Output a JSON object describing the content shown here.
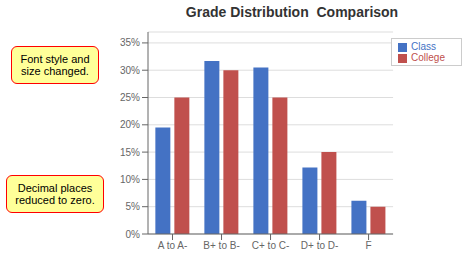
{
  "chart_data": {
    "type": "bar",
    "title": "Grade Distribution  Comparison",
    "categories": [
      "A to A-",
      "B+ to B-",
      "C+ to C-",
      "D+ to D-",
      "F"
    ],
    "series": [
      {
        "name": "Class",
        "color": "#4472C4",
        "values": [
          19.5,
          31.7,
          30.5,
          12.2,
          6.1
        ]
      },
      {
        "name": "College",
        "color": "#C0504D",
        "values": [
          25.0,
          30.0,
          25.0,
          15.0,
          5.0
        ]
      }
    ],
    "ylim": [
      0,
      37
    ],
    "yticks": [
      {
        "value": 0,
        "label": "0%"
      },
      {
        "value": 5,
        "label": "5%"
      },
      {
        "value": 10,
        "label": "10%"
      },
      {
        "value": 15,
        "label": "15%"
      },
      {
        "value": 20,
        "label": "20%"
      },
      {
        "value": 25,
        "label": "25%"
      },
      {
        "value": 30,
        "label": "30%"
      },
      {
        "value": 35,
        "label": "35%"
      }
    ],
    "grid": true,
    "legend": "upper right",
    "annotations": [
      "Font style and\nsize changed.",
      "Decimal places\nreduced to zero."
    ]
  }
}
